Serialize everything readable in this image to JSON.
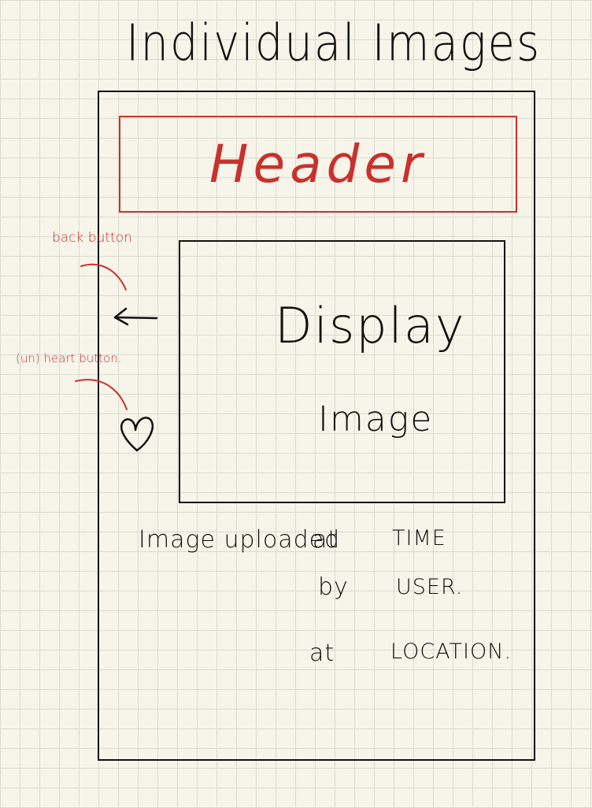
{
  "title": "Individual Images",
  "header": {
    "label": "Header"
  },
  "image": {
    "line1": "Display",
    "line2": "Image"
  },
  "annotations": {
    "back": "back button",
    "heart": "(un) heart button."
  },
  "meta": {
    "image_uploaded": "Image uploaded",
    "at1": "at",
    "time": "TIME",
    "by": "by",
    "user": "USER.",
    "at2": "at",
    "location": "LOCATION."
  },
  "icons": {
    "back": "left-arrow-icon",
    "heart": "heart-icon"
  },
  "colors": {
    "ink": "#111111",
    "annotation": "#c8322c",
    "paper": "#f7f4ea"
  }
}
